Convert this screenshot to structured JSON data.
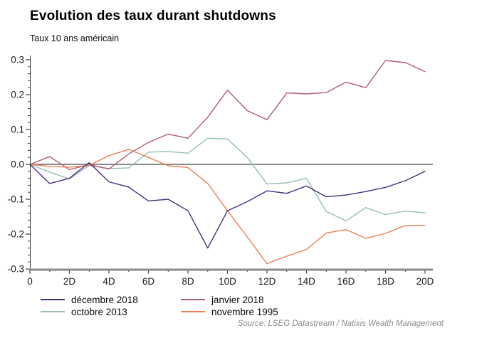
{
  "title": "Evolution des taux durant shutdowns",
  "subtitle": "Taux 10 ans américain",
  "source": "Source: LSEG Datastream / Natixis Wealth Management",
  "chart_data": {
    "type": "line",
    "x": [
      0,
      1,
      2,
      3,
      4,
      5,
      6,
      7,
      8,
      9,
      10,
      11,
      12,
      13,
      14,
      15,
      16,
      17,
      18,
      19,
      20
    ],
    "x_major_tick_labels": [
      "0",
      "2D",
      "4D",
      "6D",
      "8D",
      "10D",
      "12D",
      "14D",
      "16D",
      "18D",
      "20D"
    ],
    "x_major_tick_days": [
      0,
      2,
      4,
      6,
      8,
      10,
      12,
      14,
      16,
      18,
      20
    ],
    "x_minor_tick_days": [
      1,
      3,
      5,
      7,
      9,
      11,
      13,
      15,
      17,
      19
    ],
    "ylim": [
      -0.3,
      0.3
    ],
    "y_major_ticks": [
      0.3,
      0.2,
      0.1,
      0.0,
      -0.1,
      -0.2,
      -0.3
    ],
    "y_major_tick_labels": [
      "0.3",
      "0.2",
      "0.1",
      "0.0",
      "-0.1",
      "-0.2",
      "-0.3"
    ],
    "y_minor_tick_step": 0.02,
    "zero_line": true,
    "grid": false,
    "legend_position": "bottom",
    "axis_colors": {
      "spine": "#3d3d3d",
      "tick": "#3d3d3d",
      "label": "#1a1a1a",
      "zero_line": "#8a8a8a",
      "base_line": "#8a8a8a"
    },
    "series": [
      {
        "name": "décembre 2018",
        "color": "#472f7d",
        "values": [
          0,
          -0.055,
          -0.04,
          0.005,
          -0.05,
          -0.065,
          -0.105,
          -0.1,
          -0.133,
          -0.24,
          -0.133,
          -0.107,
          -0.076,
          -0.083,
          -0.062,
          -0.093,
          -0.088,
          -0.078,
          -0.066,
          -0.047,
          -0.02
        ]
      },
      {
        "name": "octobre 2013",
        "color": "#96beb6",
        "values": [
          0,
          -0.022,
          -0.042,
          -0.003,
          -0.012,
          -0.01,
          0.035,
          0.037,
          0.032,
          0.075,
          0.073,
          0.02,
          -0.056,
          -0.053,
          -0.04,
          -0.135,
          -0.162,
          -0.124,
          -0.144,
          -0.134,
          -0.139
        ]
      },
      {
        "name": "janvier 2018",
        "color": "#b25c6e",
        "values": [
          0,
          0.022,
          -0.015,
          -0.001,
          -0.013,
          0.03,
          0.063,
          0.087,
          0.075,
          0.135,
          0.213,
          0.154,
          0.128,
          0.205,
          0.202,
          0.206,
          0.236,
          0.22,
          0.298,
          0.292,
          0.266
        ]
      },
      {
        "name": "novembre 1995",
        "color": "#ec7f52",
        "values": [
          0,
          -0.006,
          -0.008,
          -0.003,
          0.025,
          0.043,
          0.02,
          -0.004,
          -0.009,
          -0.055,
          -0.133,
          -0.208,
          -0.285,
          -0.263,
          -0.244,
          -0.197,
          -0.187,
          -0.212,
          -0.198,
          -0.175,
          -0.175
        ]
      }
    ]
  }
}
